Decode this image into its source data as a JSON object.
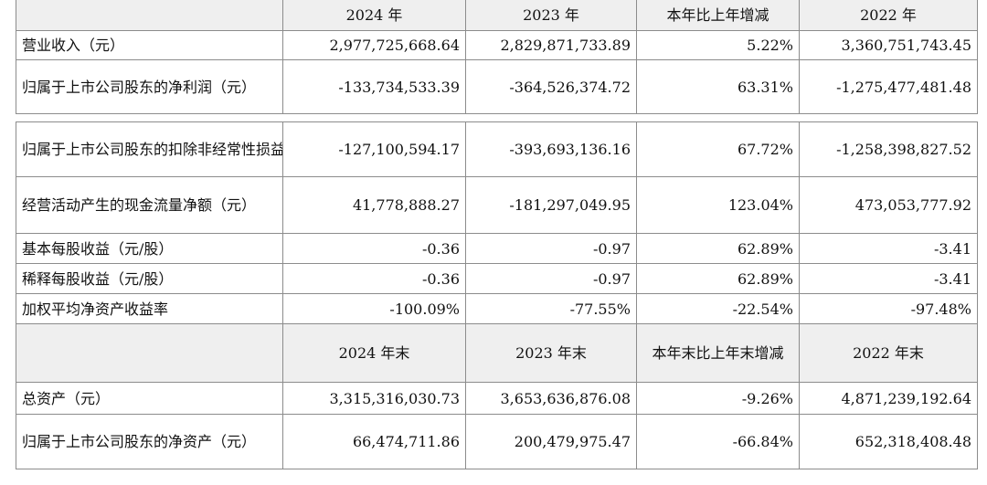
{
  "table_top": {
    "headers": [
      "",
      "2024 年",
      "2023 年",
      "本年比上年增减",
      "2022 年"
    ],
    "rows": [
      {
        "label": "营业收入（元）",
        "values": [
          "2,977,725,668.64",
          "2,829,871,733.89",
          "5.22%",
          "3,360,751,743.45"
        ]
      },
      {
        "label": "归属于上市公司股东的净利润（元）",
        "values": [
          "-133,734,533.39",
          "-364,526,374.72",
          "63.31%",
          "-1,275,477,481.48"
        ]
      }
    ]
  },
  "table_main": {
    "rows_a": [
      {
        "label": "归属于上市公司股东的扣除非经常性损益的净利润（元）",
        "values": [
          "-127,100,594.17",
          "-393,693,136.16",
          "67.72%",
          "-1,258,398,827.52"
        ]
      },
      {
        "label": "经营活动产生的现金流量净额（元）",
        "values": [
          "41,778,888.27",
          "-181,297,049.95",
          "123.04%",
          "473,053,777.92"
        ]
      },
      {
        "label": "基本每股收益（元/股）",
        "values": [
          "-0.36",
          "-0.97",
          "62.89%",
          "-3.41"
        ]
      },
      {
        "label": "稀释每股收益（元/股）",
        "values": [
          "-0.36",
          "-0.97",
          "62.89%",
          "-3.41"
        ]
      },
      {
        "label": "加权平均净资产收益率",
        "values": [
          "-100.09%",
          "-77.55%",
          "-22.54%",
          "-97.48%"
        ]
      }
    ],
    "headers_b": [
      "",
      "2024 年末",
      "2023 年末",
      "本年末比上年末增减",
      "2022 年末"
    ],
    "rows_b": [
      {
        "label": "总资产（元）",
        "values": [
          "3,315,316,030.73",
          "3,653,636,876.08",
          "-9.26%",
          "4,871,239,192.64"
        ]
      },
      {
        "label": "归属于上市公司股东的净资产（元）",
        "values": [
          "66,474,711.86",
          "200,479,975.47",
          "-66.84%",
          "652,318,408.48"
        ]
      }
    ]
  }
}
